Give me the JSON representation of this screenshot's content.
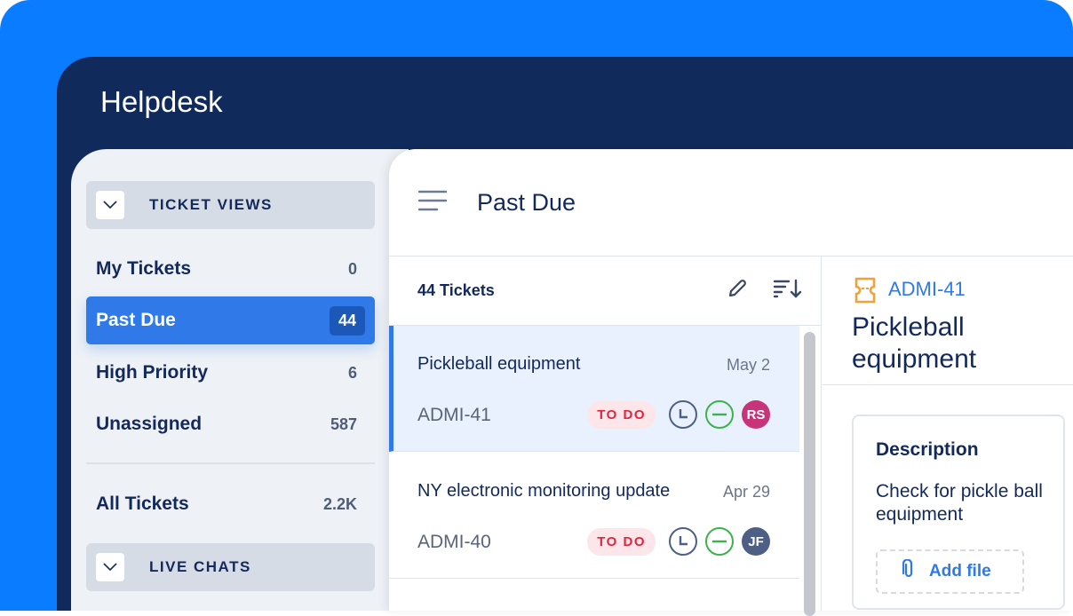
{
  "app": {
    "title": "Helpdesk"
  },
  "sidebar": {
    "ticket_views_label": "TICKET VIEWS",
    "live_chats_label": "LIVE CHATS",
    "items": [
      {
        "label": "My Tickets",
        "count": "0"
      },
      {
        "label": "Past Due",
        "count": "44",
        "active": true
      },
      {
        "label": "High Priority",
        "count": "6"
      },
      {
        "label": "Unassigned",
        "count": "587"
      },
      {
        "label": "All Tickets",
        "count": "2.2K"
      }
    ]
  },
  "header": {
    "title": "Past Due"
  },
  "list": {
    "count_label": "44 Tickets",
    "tickets": [
      {
        "title": "Pickleball equipment",
        "date": "May 2",
        "id": "ADMI-41",
        "status": "TO DO",
        "assignee": "RS",
        "assignee_color": "#c8347a"
      },
      {
        "title": "NY electronic monitoring update",
        "date": "Apr 29",
        "id": "ADMI-40",
        "status": "TO DO",
        "assignee": "JF",
        "assignee_color": "#4d5f85"
      }
    ]
  },
  "detail": {
    "id": "ADMI-41",
    "title": "Pickleball equipment",
    "description_heading": "Description",
    "description": "Check for pickle ball equipment",
    "add_file_label": "Add file"
  },
  "colors": {
    "brand_blue": "#0a7cff",
    "navy": "#102a5c",
    "accent": "#2f7ae8",
    "todo": "#e0263f"
  }
}
